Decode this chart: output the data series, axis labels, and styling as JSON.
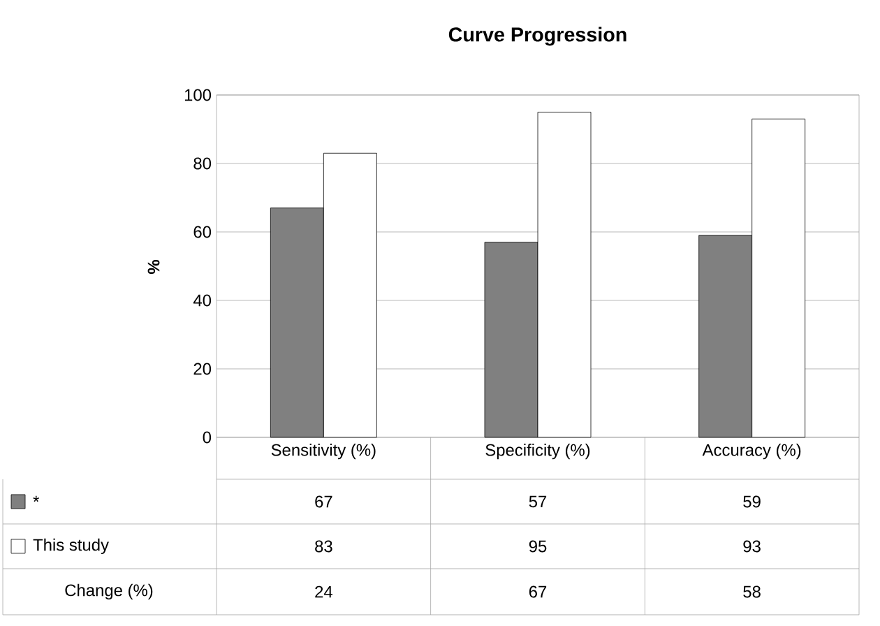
{
  "chart_data": {
    "type": "bar",
    "title": "Curve Progression",
    "ylabel": "%",
    "categories": [
      "Sensitivity (%)",
      "Specificity (%)",
      "Accuracy (%)"
    ],
    "series": [
      {
        "name": "*",
        "color": "#808080",
        "values": [
          67,
          57,
          59
        ]
      },
      {
        "name": "This study",
        "color": "#ffffff",
        "values": [
          83,
          95,
          93
        ]
      }
    ],
    "ylim": [
      0,
      100
    ],
    "yticks": [
      0,
      20,
      40,
      60,
      80,
      100
    ],
    "grid": "y",
    "legend": "bottom left",
    "data_labels": true,
    "annotations": [
      "Change (%)",
      "24",
      "67",
      "58"
    ]
  }
}
